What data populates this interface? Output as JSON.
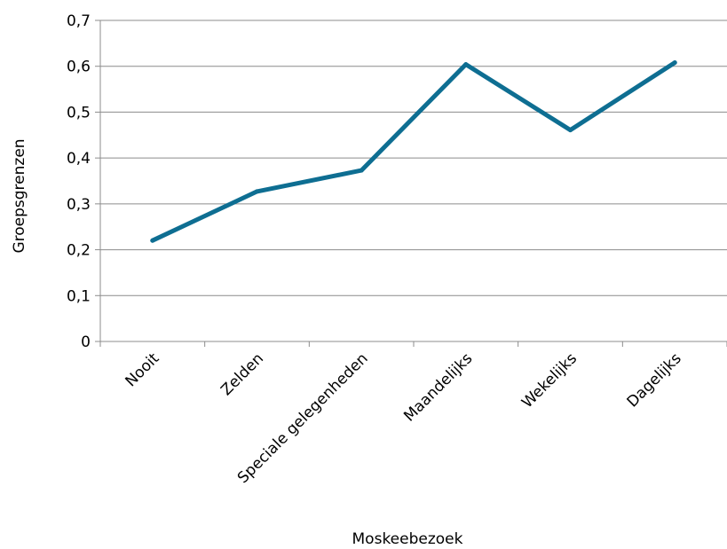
{
  "chart_data": {
    "type": "line",
    "categories": [
      "Nooit",
      "Zelden",
      "Speciale gelegenheden",
      "Maandelijks",
      "Wekelijks",
      "Dagelijks"
    ],
    "series": [
      {
        "values": [
          0.22,
          0.327,
          0.373,
          0.604,
          0.461,
          0.608
        ],
        "color": "#0e6e92"
      }
    ],
    "title": "",
    "xlabel": "Moskeebezoek",
    "ylabel": "Groepsgrenzen",
    "ylim": [
      0,
      0.7
    ],
    "yticks": [
      "0",
      "0,1",
      "0,2",
      "0,3",
      "0,4",
      "0,5",
      "0,6",
      "0,7"
    ],
    "grid": true,
    "legend": "none"
  }
}
